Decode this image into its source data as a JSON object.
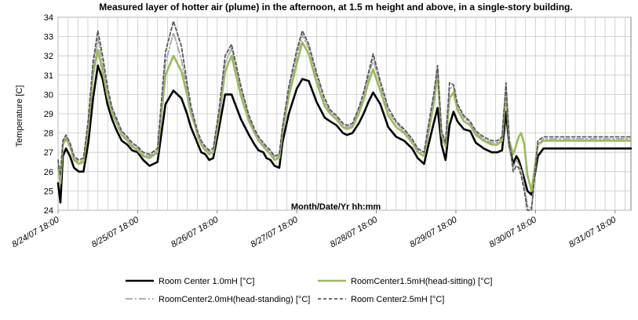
{
  "chart_data": {
    "type": "line",
    "title": "Measured layer of hotter air (plume) in the afternoon, at 1.5 m height and above, in a single-story building.",
    "xlabel": "Month/Date/Yr hh:mm",
    "ylabel": "Temperature [C]",
    "ylim": [
      24,
      34
    ],
    "xlim": [
      0,
      7.2
    ],
    "x_unit": "days since 8/24/07 18:00",
    "y_ticks": [
      24,
      25,
      26,
      27,
      28,
      29,
      30,
      31,
      32,
      33,
      34
    ],
    "x_ticks": [
      {
        "x": 0,
        "label": "8/24/07 18:00"
      },
      {
        "x": 1,
        "label": "8/25/07 18:00"
      },
      {
        "x": 2,
        "label": "8/26/07 18:00"
      },
      {
        "x": 3,
        "label": "8/27/07 18:00"
      },
      {
        "x": 4,
        "label": "8/28/07 18:00"
      },
      {
        "x": 5,
        "label": "8/29/07 18:00"
      },
      {
        "x": 6,
        "label": "8/30/07 18:00"
      },
      {
        "x": 7,
        "label": "8/31/07 18:00"
      }
    ],
    "grid": true,
    "legend_position": "bottom",
    "series": [
      {
        "name": "Room Center 1.0mH [°C]",
        "color": "#000000",
        "style": "solid-thick",
        "x": [
          0,
          0.03,
          0.06,
          0.1,
          0.15,
          0.2,
          0.26,
          0.32,
          0.38,
          0.44,
          0.5,
          0.56,
          0.62,
          0.68,
          0.74,
          0.8,
          0.87,
          0.93,
          1.0,
          1.07,
          1.15,
          1.25,
          1.35,
          1.45,
          1.55,
          1.62,
          1.67,
          1.72,
          1.76,
          1.8,
          1.85,
          1.9,
          1.95,
          2.02,
          2.1,
          2.18,
          2.3,
          2.4,
          2.47,
          2.52,
          2.58,
          2.62,
          2.67,
          2.72,
          2.78,
          2.82,
          2.9,
          3.0,
          3.07,
          3.15,
          3.25,
          3.35,
          3.42,
          3.5,
          3.54,
          3.58,
          3.63,
          3.7,
          3.78,
          3.84,
          3.9,
          3.96,
          4.05,
          4.15,
          4.25,
          4.35,
          4.45,
          4.52,
          4.6,
          4.65,
          4.72,
          4.77,
          4.82,
          4.87,
          4.92,
          4.97,
          5.02,
          5.1,
          5.18,
          5.25,
          5.35,
          5.45,
          5.52,
          5.58,
          5.63,
          5.67,
          5.72,
          5.76,
          5.79,
          5.82,
          5.86,
          5.9,
          5.95,
          6.03,
          6.1,
          6.18,
          6.3,
          6.4,
          6.5,
          6.58,
          6.62,
          6.66,
          6.7,
          6.74,
          6.78,
          6.83,
          6.88,
          6.94,
          7.0,
          7.06,
          7.12,
          7.2
        ],
        "y": [
          25.4,
          24.4,
          26.8,
          27.2,
          26.8,
          26.2,
          26.0,
          26.0,
          27.5,
          29.8,
          31.5,
          30.8,
          29.5,
          28.7,
          28.1,
          27.6,
          27.4,
          27.1,
          27.0,
          26.6,
          26.3,
          26.5,
          29.5,
          30.2,
          29.8,
          29.0,
          28.3,
          27.8,
          27.4,
          27.0,
          26.9,
          26.6,
          26.7,
          28.2,
          30.0,
          30.0,
          28.7,
          27.9,
          27.4,
          27.1,
          27.0,
          26.7,
          26.6,
          26.3,
          26.2,
          27.5,
          29.0,
          30.3,
          30.8,
          30.7,
          29.6,
          28.8,
          28.6,
          28.4,
          28.2,
          28.0,
          27.9,
          28.0,
          28.5,
          29.0,
          29.6,
          30.1,
          29.5,
          28.3,
          27.8,
          27.6,
          27.2,
          26.7,
          26.4,
          27.3,
          28.5,
          29.3,
          27.4,
          26.6,
          28.4,
          29.1,
          28.6,
          28.2,
          28.1,
          27.5,
          27.2,
          27.0,
          27.0,
          27.1,
          29.1,
          27.4,
          26.4,
          26.8,
          26.6,
          26.2,
          25.6,
          25.0,
          24.8,
          26.8,
          27.2,
          27.2,
          27.2,
          27.2,
          27.2,
          27.2,
          27.2,
          27.2,
          27.2,
          27.2,
          27.2,
          27.2,
          27.2,
          27.2,
          27.2,
          27.2,
          27.2,
          27.2
        ]
      },
      {
        "name": "RoomCenter1.5mH(head-sitting) [°C]",
        "color": "#9bbb59",
        "style": "solid-thick",
        "x": [
          0,
          0.03,
          0.06,
          0.1,
          0.15,
          0.2,
          0.26,
          0.32,
          0.38,
          0.44,
          0.5,
          0.56,
          0.62,
          0.68,
          0.74,
          0.8,
          0.87,
          0.93,
          1.0,
          1.07,
          1.15,
          1.25,
          1.35,
          1.45,
          1.55,
          1.62,
          1.67,
          1.72,
          1.76,
          1.8,
          1.85,
          1.9,
          1.95,
          2.02,
          2.1,
          2.18,
          2.3,
          2.4,
          2.47,
          2.52,
          2.58,
          2.62,
          2.67,
          2.72,
          2.78,
          2.82,
          2.9,
          3.0,
          3.07,
          3.15,
          3.25,
          3.35,
          3.42,
          3.5,
          3.54,
          3.58,
          3.63,
          3.7,
          3.78,
          3.84,
          3.9,
          3.96,
          4.05,
          4.15,
          4.25,
          4.35,
          4.45,
          4.52,
          4.6,
          4.65,
          4.72,
          4.77,
          4.82,
          4.87,
          4.92,
          4.97,
          5.02,
          5.1,
          5.18,
          5.25,
          5.35,
          5.45,
          5.52,
          5.58,
          5.63,
          5.67,
          5.72,
          5.76,
          5.79,
          5.82,
          5.86,
          5.9,
          5.95,
          6.03,
          6.1,
          6.18,
          6.3,
          6.4,
          6.5,
          6.58,
          6.62,
          6.66,
          6.7,
          6.74,
          6.78,
          6.83,
          6.88,
          6.94,
          7.0,
          7.06,
          7.12,
          7.2
        ],
        "y": [
          26.2,
          25.4,
          27.4,
          27.7,
          27.3,
          26.6,
          26.4,
          26.5,
          28.3,
          31.0,
          32.3,
          31.2,
          29.9,
          29.0,
          28.5,
          27.9,
          27.6,
          27.3,
          27.1,
          26.8,
          26.7,
          27.0,
          31.0,
          32.0,
          31.2,
          30.0,
          29.0,
          28.4,
          27.8,
          27.4,
          27.1,
          26.9,
          27.0,
          28.7,
          31.2,
          32.0,
          29.9,
          28.6,
          28.0,
          27.6,
          27.3,
          27.1,
          26.9,
          26.6,
          26.7,
          28.0,
          29.9,
          31.6,
          32.7,
          32.1,
          30.6,
          29.4,
          29.0,
          28.7,
          28.5,
          28.3,
          28.2,
          28.3,
          29.0,
          29.7,
          30.6,
          31.3,
          30.2,
          28.9,
          28.3,
          28.0,
          27.5,
          27.0,
          26.8,
          27.9,
          29.5,
          31.0,
          27.9,
          27.3,
          29.8,
          30.1,
          29.2,
          28.6,
          28.4,
          27.9,
          27.6,
          27.4,
          27.4,
          27.6,
          30.2,
          27.6,
          26.9,
          27.4,
          27.8,
          28.0,
          27.4,
          25.8,
          25.0,
          27.4,
          27.6,
          27.6,
          27.6,
          27.6,
          27.6,
          27.6,
          27.6,
          27.6,
          27.6,
          27.6,
          27.6,
          27.6,
          27.6,
          27.6,
          27.6,
          27.6,
          27.6,
          27.6
        ]
      },
      {
        "name": "RoomCenter2.0mH(head-standing) [°C]",
        "color": "#a6a6a6",
        "style": "dash-dot",
        "x": [
          0,
          0.03,
          0.06,
          0.1,
          0.15,
          0.2,
          0.26,
          0.32,
          0.38,
          0.44,
          0.5,
          0.56,
          0.62,
          0.68,
          0.74,
          0.8,
          0.87,
          0.93,
          1.0,
          1.07,
          1.15,
          1.25,
          1.35,
          1.45,
          1.55,
          1.62,
          1.67,
          1.72,
          1.76,
          1.8,
          1.85,
          1.9,
          1.95,
          2.02,
          2.1,
          2.18,
          2.3,
          2.4,
          2.47,
          2.52,
          2.58,
          2.62,
          2.67,
          2.72,
          2.78,
          2.82,
          2.9,
          3.0,
          3.07,
          3.15,
          3.25,
          3.35,
          3.42,
          3.5,
          3.54,
          3.58,
          3.63,
          3.7,
          3.78,
          3.84,
          3.9,
          3.96,
          4.05,
          4.15,
          4.25,
          4.35,
          4.45,
          4.52,
          4.6,
          4.65,
          4.72,
          4.77,
          4.82,
          4.87,
          4.92,
          4.97,
          5.02,
          5.1,
          5.18,
          5.25,
          5.35,
          5.45,
          5.52,
          5.58,
          5.63,
          5.67,
          5.72,
          5.76,
          5.79,
          5.82,
          5.86,
          5.9,
          5.95,
          6.03,
          6.1,
          6.18,
          6.3,
          6.4,
          6.5,
          6.58,
          6.62,
          6.66,
          6.7,
          6.74,
          6.78,
          6.83,
          6.88,
          6.94,
          7.0,
          7.06,
          7.12,
          7.2
        ],
        "y": [
          26.4,
          25.6,
          27.5,
          27.8,
          27.4,
          26.7,
          26.5,
          26.6,
          28.5,
          31.4,
          32.9,
          31.6,
          30.2,
          29.2,
          28.6,
          28.0,
          27.7,
          27.4,
          27.2,
          26.9,
          26.8,
          27.1,
          31.6,
          33.2,
          31.8,
          30.3,
          29.2,
          28.5,
          27.9,
          27.5,
          27.2,
          27.0,
          27.1,
          28.9,
          31.6,
          32.4,
          30.2,
          28.8,
          28.1,
          27.7,
          27.4,
          27.2,
          27.0,
          26.7,
          26.8,
          28.2,
          30.2,
          32.0,
          33.1,
          32.4,
          30.9,
          29.6,
          29.1,
          28.8,
          28.6,
          28.4,
          28.3,
          28.4,
          29.2,
          29.9,
          30.9,
          31.8,
          30.5,
          29.1,
          28.5,
          28.1,
          27.6,
          27.1,
          26.9,
          28.1,
          29.8,
          31.4,
          28.0,
          27.4,
          30.3,
          30.4,
          29.4,
          28.8,
          28.5,
          28.0,
          27.7,
          27.5,
          27.5,
          27.7,
          30.5,
          27.4,
          26.2,
          26.6,
          26.4,
          26.1,
          25.3,
          24.2,
          24.1,
          27.4,
          27.7,
          27.7,
          27.7,
          27.7,
          27.7,
          27.7,
          27.7,
          27.7,
          27.7,
          27.7,
          27.7,
          27.7,
          27.7,
          27.7,
          27.7,
          27.7,
          27.7,
          27.7
        ]
      },
      {
        "name": "Room Center2.5mH [°C]",
        "color": "#595959",
        "style": "dashed",
        "x": [
          0,
          0.03,
          0.06,
          0.1,
          0.15,
          0.2,
          0.26,
          0.32,
          0.38,
          0.44,
          0.5,
          0.56,
          0.62,
          0.68,
          0.74,
          0.8,
          0.87,
          0.93,
          1.0,
          1.07,
          1.15,
          1.25,
          1.35,
          1.45,
          1.55,
          1.62,
          1.67,
          1.72,
          1.76,
          1.8,
          1.85,
          1.9,
          1.95,
          2.02,
          2.1,
          2.18,
          2.3,
          2.4,
          2.47,
          2.52,
          2.58,
          2.62,
          2.67,
          2.72,
          2.78,
          2.82,
          2.9,
          3.0,
          3.07,
          3.15,
          3.25,
          3.35,
          3.42,
          3.5,
          3.54,
          3.58,
          3.63,
          3.7,
          3.78,
          3.84,
          3.9,
          3.96,
          4.05,
          4.15,
          4.25,
          4.35,
          4.45,
          4.52,
          4.6,
          4.65,
          4.72,
          4.77,
          4.82,
          4.87,
          4.92,
          4.97,
          5.02,
          5.1,
          5.18,
          5.25,
          5.35,
          5.45,
          5.52,
          5.58,
          5.63,
          5.67,
          5.72,
          5.76,
          5.79,
          5.82,
          5.86,
          5.9,
          5.95,
          6.03,
          6.1,
          6.18,
          6.3,
          6.4,
          6.5,
          6.58,
          6.62,
          6.66,
          6.7,
          6.74,
          6.78,
          6.83,
          6.88,
          6.94,
          7.0,
          7.06,
          7.12,
          7.2
        ],
        "y": [
          26.6,
          25.8,
          27.6,
          27.9,
          27.5,
          26.8,
          26.6,
          26.7,
          28.7,
          31.7,
          33.3,
          32.0,
          30.4,
          29.3,
          28.7,
          28.1,
          27.8,
          27.5,
          27.3,
          27.0,
          26.9,
          27.2,
          32.2,
          33.8,
          32.5,
          30.6,
          29.4,
          28.6,
          28.0,
          27.6,
          27.3,
          27.1,
          27.2,
          29.1,
          32.0,
          32.6,
          30.4,
          28.9,
          28.2,
          27.8,
          27.5,
          27.3,
          27.1,
          26.8,
          26.9,
          28.3,
          30.4,
          32.3,
          33.3,
          32.6,
          31.1,
          29.8,
          29.2,
          28.9,
          28.7,
          28.5,
          28.4,
          28.5,
          29.3,
          30.1,
          31.1,
          32.1,
          30.7,
          29.3,
          28.6,
          28.2,
          27.7,
          27.2,
          27.0,
          28.3,
          30.0,
          31.5,
          28.1,
          27.5,
          30.6,
          30.5,
          29.5,
          28.9,
          28.6,
          28.1,
          27.8,
          27.6,
          27.6,
          27.8,
          30.6,
          27.6,
          26.0,
          26.3,
          26.2,
          25.8,
          25.0,
          24.0,
          24.0,
          27.6,
          27.8,
          27.8,
          27.8,
          27.8,
          27.8,
          27.8,
          27.8,
          27.8,
          27.8,
          27.8,
          27.8,
          27.8,
          27.8,
          27.8,
          27.8,
          27.8,
          27.8,
          27.8
        ]
      }
    ]
  }
}
